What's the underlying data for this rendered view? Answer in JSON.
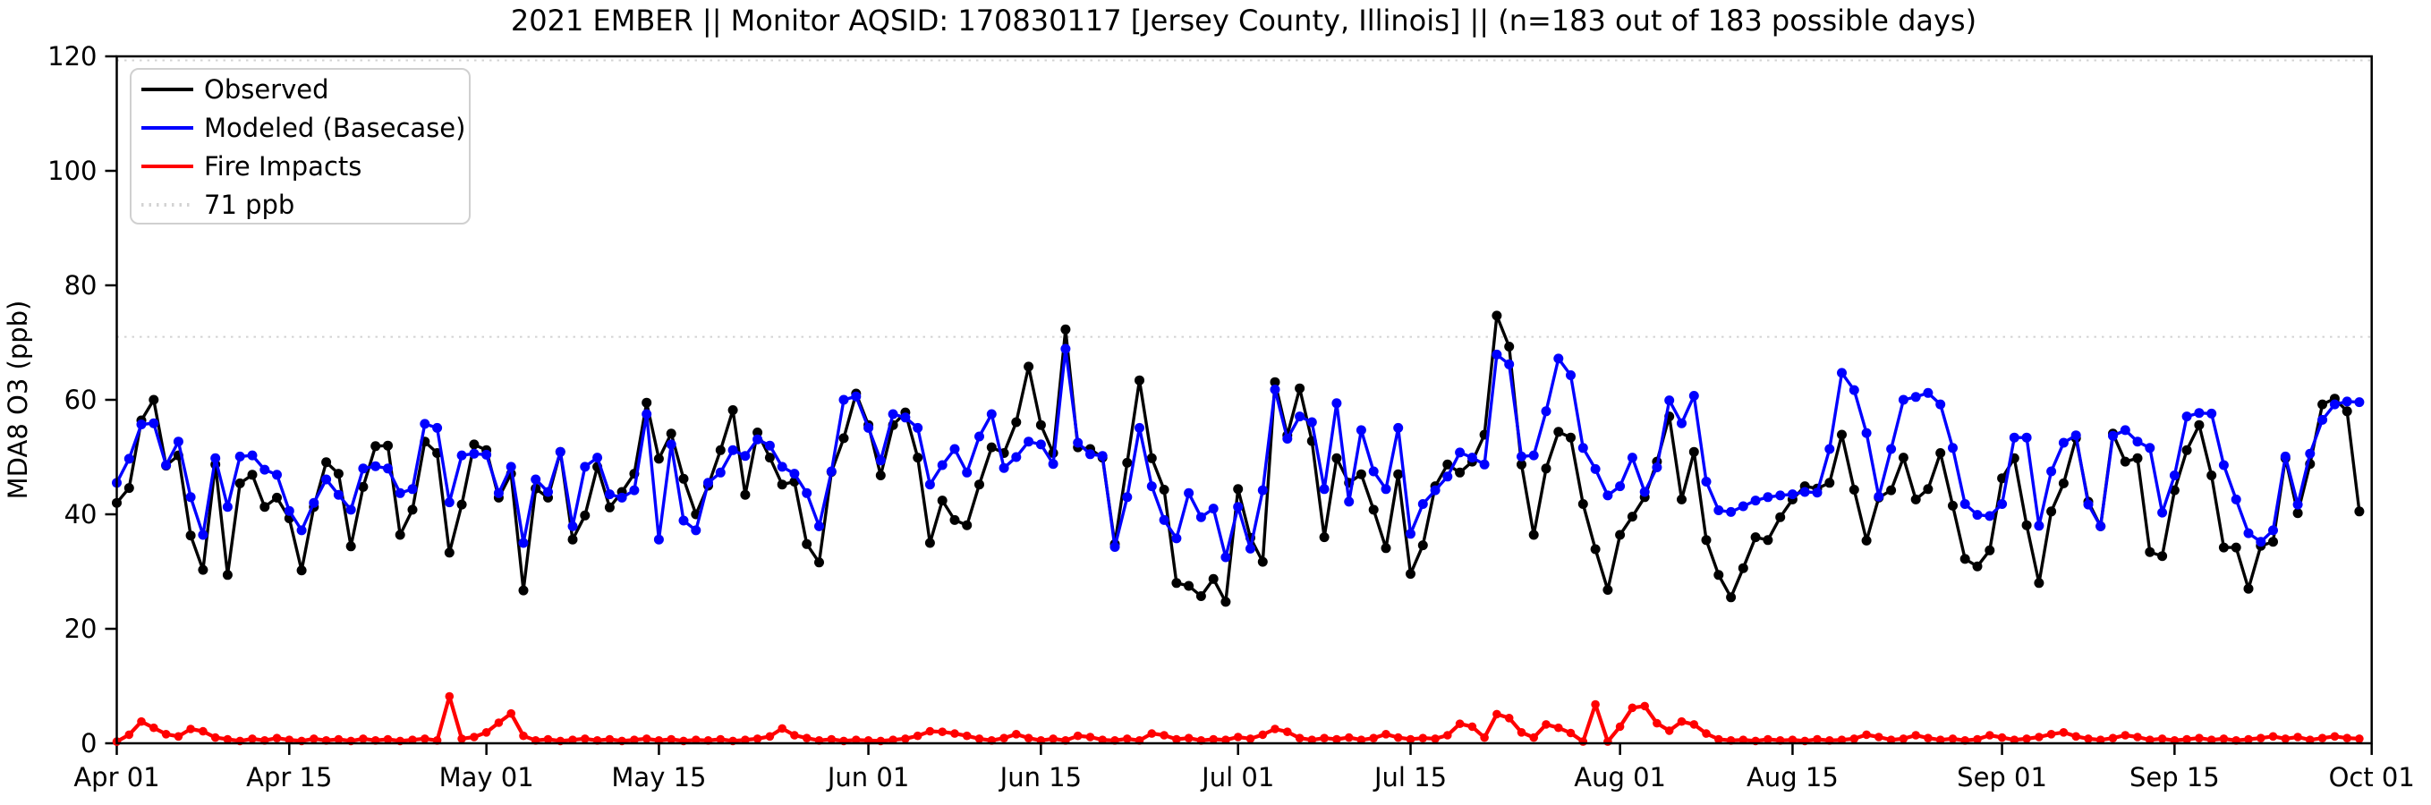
{
  "title": "2021 EMBER || Monitor AQSID: 170830117 [Jersey County, Illinois] || (n=183 out of 183 possible days)",
  "ylabel": "MDA8 O3 (ppb)",
  "colors": {
    "observed": "#000000",
    "modeled": "#0000ff",
    "fire": "#ff0000",
    "threshold": "#d3d3d3",
    "axis": "#000000",
    "legend_border": "#d0d0d0",
    "background": "#ffffff"
  },
  "legend": {
    "items": [
      {
        "label": "Observed",
        "color": "#000000",
        "style": "solid"
      },
      {
        "label": "Modeled (Basecase)",
        "color": "#0000ff",
        "style": "solid"
      },
      {
        "label": "Fire Impacts",
        "color": "#ff0000",
        "style": "solid"
      },
      {
        "label": "71 ppb",
        "color": "#d3d3d3",
        "style": "dotted"
      }
    ]
  },
  "chart_data": {
    "type": "line",
    "title": "2021 EMBER || Monitor AQSID: 170830117 [Jersey County, Illinois] || (n=183 out of 183 possible days)",
    "xlabel": "",
    "ylabel": "MDA8 O3 (ppb)",
    "ylim": [
      0,
      120
    ],
    "xlim_days": [
      0,
      183
    ],
    "grid": false,
    "legend_position": "upper left",
    "threshold": {
      "value": 71,
      "label": "71 ppb",
      "style": "dotted",
      "color": "#d3d3d3"
    },
    "y_ticks": [
      0,
      20,
      40,
      60,
      80,
      100,
      120
    ],
    "x_ticks": [
      {
        "day": 0,
        "label": "Apr 01"
      },
      {
        "day": 14,
        "label": "Apr 15"
      },
      {
        "day": 30,
        "label": "May 01"
      },
      {
        "day": 44,
        "label": "May 15"
      },
      {
        "day": 61,
        "label": "Jun 01"
      },
      {
        "day": 75,
        "label": "Jun 15"
      },
      {
        "day": 91,
        "label": "Jul 01"
      },
      {
        "day": 105,
        "label": "Jul 15"
      },
      {
        "day": 122,
        "label": "Aug 01"
      },
      {
        "day": 136,
        "label": "Aug 15"
      },
      {
        "day": 153,
        "label": "Sep 01"
      },
      {
        "day": 167,
        "label": "Sep 15"
      },
      {
        "day": 183,
        "label": "Oct 01"
      }
    ],
    "n_days": 183,
    "date_start": "Apr 01",
    "date_end": "Sep 30",
    "series": [
      {
        "name": "Observed",
        "color": "#000000",
        "values": [
          42.0,
          44.6,
          56.4,
          60.0,
          48.5,
          50.3,
          36.3,
          30.3,
          48.7,
          29.4,
          45.4,
          46.9,
          41.3,
          42.9,
          39.3,
          30.2,
          41.3,
          49.1,
          47.1,
          34.4,
          44.8,
          51.9,
          52.0,
          36.4,
          40.8,
          52.7,
          50.7,
          33.3,
          41.7,
          52.2,
          51.2,
          42.9,
          47.1,
          26.7,
          44.5,
          42.9,
          50.9,
          35.6,
          39.8,
          48.3,
          41.2,
          43.9,
          47.1,
          59.5,
          49.7,
          54.1,
          46.2,
          40.0,
          45.0,
          51.2,
          58.2,
          43.4,
          54.3,
          49.9,
          45.2,
          45.7,
          34.8,
          31.6,
          47.4,
          53.3,
          61.1,
          55.6,
          46.8,
          55.6,
          57.8,
          49.9,
          35.0,
          42.4,
          39.0,
          38.1,
          45.2,
          51.7,
          50.7,
          56.1,
          65.8,
          55.6,
          50.7,
          72.3,
          51.7,
          51.4,
          49.9,
          34.8,
          49.0,
          63.4,
          49.8,
          44.3,
          28.0,
          27.5,
          25.7,
          28.7,
          24.7,
          44.4,
          35.9,
          31.7,
          63.1,
          53.8,
          62.0,
          52.8,
          36.0,
          49.8,
          45.5,
          47.0,
          40.8,
          34.1,
          47.0,
          29.6,
          34.6,
          44.9,
          48.7,
          47.3,
          49.2,
          53.9,
          74.7,
          69.3,
          48.7,
          36.4,
          48.0,
          54.4,
          53.4,
          41.8,
          33.9,
          26.8,
          36.4,
          39.6,
          43.0,
          49.2,
          57.1,
          42.6,
          50.9,
          35.5,
          29.4,
          25.5,
          30.6,
          36.0,
          35.5,
          39.5,
          42.6,
          44.9,
          44.5,
          45.5,
          53.9,
          44.3,
          35.4,
          42.9,
          44.2,
          49.9,
          42.6,
          44.4,
          50.7,
          41.5,
          32.2,
          30.9,
          33.7,
          46.3,
          49.8,
          38.1,
          28.0,
          40.5,
          45.4,
          53.3,
          42.2,
          37.9,
          54.1,
          49.2,
          49.8,
          33.4,
          32.7,
          44.2,
          51.2,
          55.6,
          46.8,
          34.2,
          34.2,
          27.0,
          34.5,
          35.2,
          49.8,
          40.2,
          48.8,
          59.2,
          60.2,
          58.0,
          40.5
        ]
      },
      {
        "name": "Modeled (Basecase)",
        "color": "#0000ff",
        "values": [
          45.5,
          49.7,
          55.7,
          55.9,
          48.6,
          52.7,
          43.0,
          36.4,
          49.8,
          41.3,
          50.1,
          50.3,
          47.8,
          46.9,
          40.6,
          37.2,
          42.0,
          46.1,
          43.4,
          40.8,
          48.0,
          48.4,
          48.0,
          43.7,
          44.4,
          55.8,
          55.1,
          42.1,
          50.3,
          50.6,
          50.4,
          43.7,
          48.3,
          35.0,
          46.1,
          43.9,
          50.9,
          37.9,
          48.3,
          49.9,
          43.5,
          42.9,
          44.2,
          57.5,
          35.6,
          52.2,
          38.9,
          37.2,
          45.5,
          47.3,
          51.2,
          50.2,
          53.1,
          52.0,
          48.3,
          47.1,
          43.7,
          37.9,
          47.5,
          60.0,
          60.6,
          55.1,
          49.4,
          57.5,
          56.9,
          55.1,
          45.2,
          48.6,
          51.4,
          47.3,
          53.6,
          57.5,
          48.1,
          50.0,
          52.7,
          52.2,
          48.8,
          68.9,
          52.5,
          50.5,
          50.2,
          34.3,
          43.0,
          55.1,
          44.9,
          39.0,
          35.8,
          43.7,
          39.5,
          41.0,
          32.5,
          41.3,
          34.0,
          44.2,
          61.8,
          53.2,
          57.1,
          56.1,
          44.4,
          59.4,
          42.2,
          54.7,
          47.5,
          44.4,
          55.1,
          36.6,
          41.8,
          44.2,
          46.6,
          50.8,
          49.9,
          48.7,
          67.9,
          66.2,
          50.1,
          50.3,
          58.0,
          67.2,
          64.3,
          51.6,
          47.9,
          43.3,
          44.9,
          49.9,
          43.9,
          48.2,
          59.9,
          55.9,
          60.7,
          45.7,
          40.7,
          40.4,
          41.4,
          42.4,
          43.0,
          43.3,
          43.5,
          43.9,
          43.8,
          51.4,
          64.7,
          61.7,
          54.2,
          43.1,
          51.4,
          60.0,
          60.5,
          61.2,
          59.2,
          51.6,
          41.8,
          39.9,
          39.7,
          41.8,
          53.4,
          53.4,
          38.0,
          47.5,
          52.5,
          53.8,
          41.7,
          37.9,
          53.7,
          54.7,
          52.7,
          51.6,
          40.3,
          46.8,
          57.1,
          57.7,
          57.6,
          48.6,
          42.6,
          36.7,
          35.2,
          37.2,
          50.1,
          41.7,
          50.6,
          56.5,
          59.2,
          59.7,
          59.6
        ]
      },
      {
        "name": "Fire Impacts",
        "color": "#ff0000",
        "values": [
          0.3,
          1.5,
          3.8,
          2.7,
          1.6,
          1.2,
          2.5,
          2.1,
          1.0,
          0.7,
          0.4,
          0.8,
          0.5,
          0.9,
          0.6,
          0.4,
          0.8,
          0.5,
          0.7,
          0.4,
          0.8,
          0.5,
          0.7,
          0.4,
          0.6,
          0.8,
          0.5,
          8.2,
          0.8,
          1.1,
          1.9,
          3.6,
          5.2,
          1.3,
          0.5,
          0.7,
          0.4,
          0.6,
          0.8,
          0.5,
          0.7,
          0.4,
          0.6,
          0.8,
          0.5,
          0.7,
          0.4,
          0.6,
          0.5,
          0.7,
          0.4,
          0.6,
          0.8,
          1.2,
          2.6,
          1.4,
          0.9,
          0.5,
          0.7,
          0.4,
          0.6,
          0.5,
          0.4,
          0.6,
          0.8,
          1.3,
          2.1,
          2.0,
          1.7,
          1.3,
          0.8,
          0.5,
          0.9,
          1.6,
          0.9,
          0.5,
          0.8,
          0.5,
          1.3,
          1.1,
          0.6,
          0.5,
          0.8,
          0.5,
          1.7,
          1.4,
          0.7,
          0.9,
          0.5,
          0.7,
          0.6,
          1.1,
          0.8,
          1.5,
          2.5,
          2.0,
          0.9,
          0.6,
          0.9,
          0.7,
          1.0,
          0.6,
          0.9,
          1.6,
          1.0,
          0.7,
          0.9,
          0.8,
          1.4,
          3.4,
          2.9,
          1.0,
          5.1,
          4.4,
          1.9,
          1.0,
          3.3,
          2.7,
          1.8,
          0.3,
          6.8,
          0.3,
          2.9,
          6.2,
          6.5,
          3.5,
          2.2,
          3.8,
          3.3,
          1.7,
          0.7,
          0.5,
          0.6,
          0.4,
          0.7,
          0.5,
          0.6,
          0.4,
          0.7,
          0.5,
          0.6,
          0.8,
          1.5,
          1.1,
          0.6,
          0.8,
          1.4,
          0.9,
          0.6,
          0.8,
          0.5,
          0.7,
          1.4,
          1.0,
          0.6,
          0.8,
          1.1,
          1.6,
          1.9,
          1.2,
          0.8,
          0.6,
          0.9,
          1.4,
          1.1,
          0.6,
          0.8,
          0.5,
          0.7,
          0.9,
          0.6,
          0.8,
          0.5,
          0.7,
          0.9,
          1.2,
          0.8,
          1.1,
          0.6,
          0.9,
          1.2,
          0.9,
          0.8
        ]
      }
    ]
  }
}
